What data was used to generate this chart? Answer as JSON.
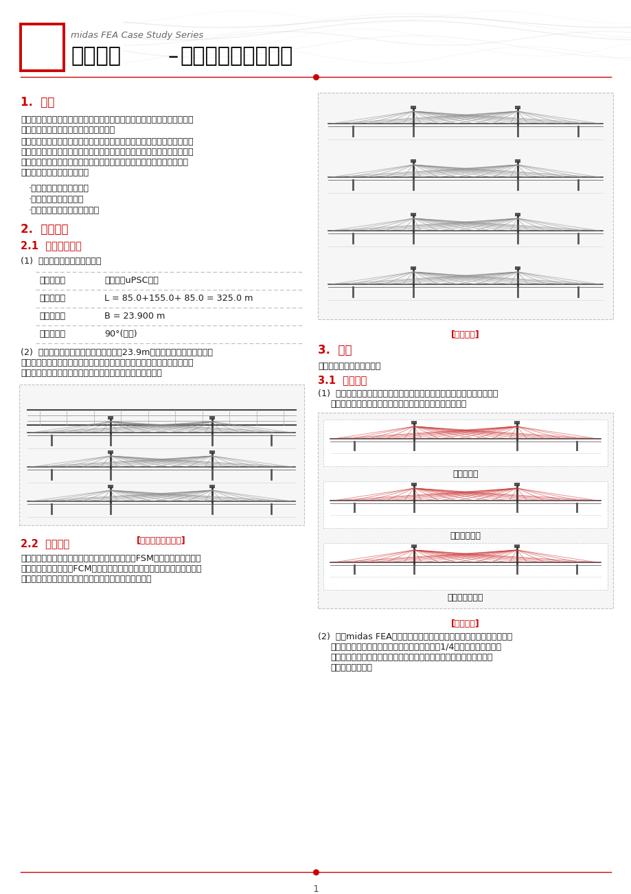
{
  "title_series": "midas FEA Case Study Series",
  "title_main": "施工阶段",
  "title_sub": "矮塔斜拉桥详细分析",
  "page_num": "1",
  "s1_title": "1.  概要",
  "s1_p1_l1": "通过矮塔斜拉桥的实体单元模型分析，查看支座反力的横向分布情况、腹板",
  "s1_p1_l2": "的剪力及加劲梁沿纵向的轴力分布情况。",
  "s1_p2_l1": "矮塔斜拉桥的受力特点为：所有的荷载均通过斜拉索传递到主塔上。故主塔",
  "s1_p2_l2": "内部将出现应力集中现象，加劲梁的支座部分、斜拉索与加劲梁的连接部分",
  "s1_p2_l3": "均会出现应力集中现象。根据上述受力特点，对结构进行实体单元详细分",
  "s1_p2_l4": "析，查看如下详细分析结果。",
  "s1_b1": "·支座反力的横向分布情况",
  "s1_b2": "·腹板的剪应力分布情况",
  "s1_b3": "·腹板以及顶板的轴力传递情况",
  "s2_title": "2.  桥梁信息",
  "s21_title": "2.1  桥梁几何信息",
  "s21_p1": "(1)  本例题桥梁基本信息如下。",
  "tbl_r1_c1": "主梁类型：",
  "tbl_r1_c2": "三跨连续uPSC筱梁",
  "tbl_r2_c1": "桥梁跨径：",
  "tbl_r2_c2": "L = 85.0+155.0+ 85.0 = 325.0 m",
  "tbl_r3_c1": "桥梁宽度：",
  "tbl_r3_c2": "B = 23.900 m",
  "tbl_r4_c1": "斜交角度：",
  "tbl_r4_c2": "90°(直桥)",
  "s21_p2_l1": "(2)  主梁截面为单筱三室截面，桥面宽制23.9m，主塔处以及边跨桥台处主",
  "s21_p2_l2": "梁横向布置四个支座（如下图所示）。主塔处内侧两支座为固定支座，边跨",
  "s21_p2_l3": "桥台处内侧两支座为纵向滑动支座，其余均为双向滑动支座。",
  "cap1": "[桥梁横、纵断面图]",
  "s22_title": "2.2  施工方法",
  "s22_l1": "本例题桥梁的施工过程如下图所示，边跨两端采用FSM（满堂支架法）施工",
  "s22_l2": "方法，其余主梁段采用FCM（悬臂法）施工方法。本例题简化了详细的施工",
  "s22_l3": "过程，仅对主梁合拢段的合拢前、后阶段进行建模分析。",
  "s3_title": "3.  模型",
  "s3_p1": "对建模部分进行简要说明。",
  "s31_title": "3.1  分析模型",
  "s31_p1_l1": "(1)  本例题仅对主梁合拢前、后阶段的结构进行施工阶段分析。共分为三个",
  "s31_p1_l2": "施工阶段，合拢前阶段、边跨合拢阶段、中跨中合拢阶段。",
  "cap2": "[施工过程]",
  "cap3": "[施工阶段]",
  "stage1": "合拢前阶段",
  "stage2": "边跨合拢阶段",
  "stage3": "中跨中合拢阶段",
  "s31_p2_l1": "(2)  利用midas FEA程序中的几何建模功能以及自动网格划分功能建立模",
  "s31_p2_l2": "型。为了减少整体结构的分析时间，只建立全析1/4的模型。混凝土部分",
  "s31_p2_l3": "采用四面体单元生成实体网格，斜拉索采用桁架单元，预应力钉束采用",
  "s31_p2_l4": "植入式钉筋模拟。",
  "red": "#cc0000",
  "dark": "#1a1a1a",
  "mid_gray": "#555555",
  "light_gray": "#bbbbbb",
  "bg": "#ffffff"
}
